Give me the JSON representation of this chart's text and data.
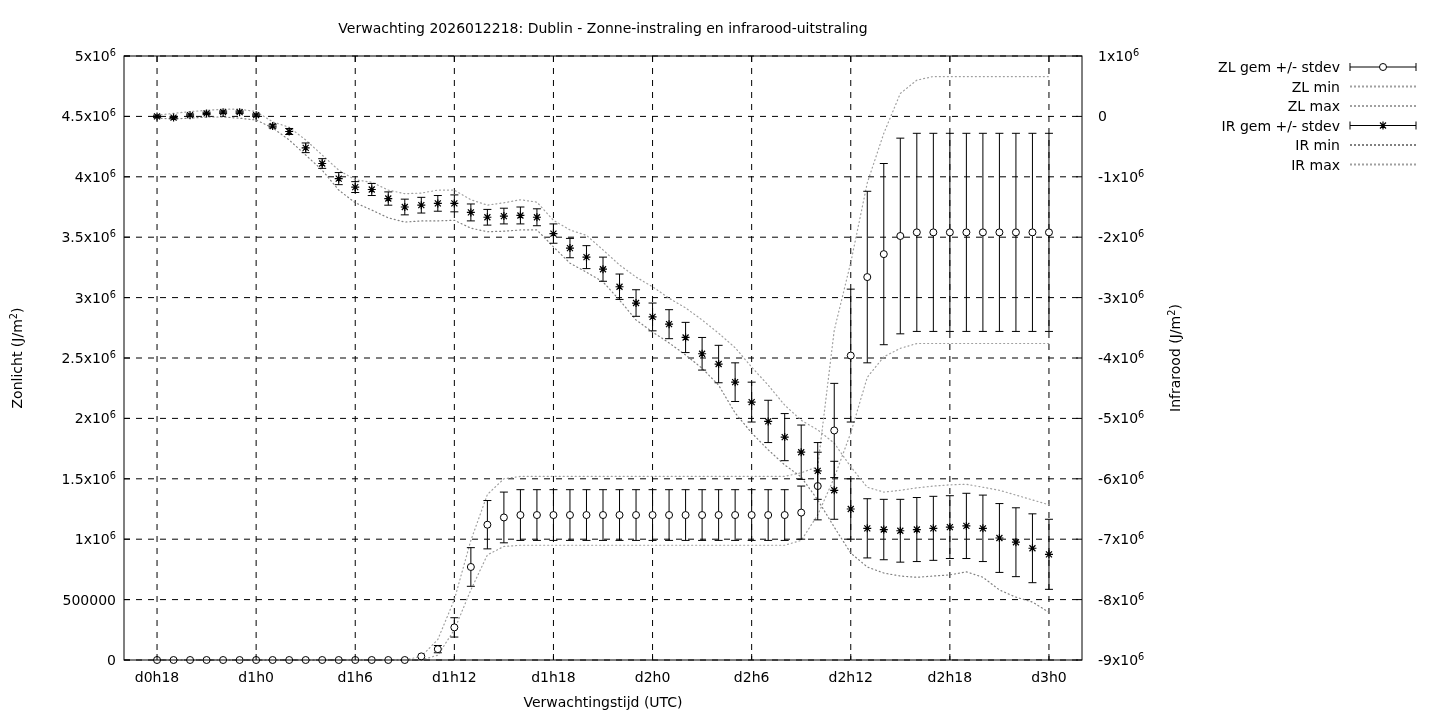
{
  "chart_data": {
    "type": "scatter",
    "title": "Verwachting 2026012218: Dublin - Zonne-instraling en infrarood-uitstraling",
    "xlabel": "Verwachtingstijd (UTC)",
    "ylabel": "Zonlicht (J/m$^{2}$)",
    "y2label": "Infrarood (J/m$^{2}$)",
    "categories": [
      "d0h18",
      null,
      null,
      null,
      null,
      null,
      "d1h0",
      null,
      null,
      null,
      null,
      null,
      "d1h6",
      null,
      null,
      null,
      null,
      null,
      "d1h12",
      null,
      null,
      null,
      null,
      null,
      "d1h18",
      null,
      null,
      null,
      null,
      null,
      "d2h0",
      null,
      null,
      null,
      null,
      null,
      "d2h6",
      null,
      null,
      null,
      null,
      null,
      "d2h12",
      null,
      null,
      null,
      null,
      null,
      "d2h18",
      null,
      null,
      null,
      null,
      null,
      "d3h0"
    ],
    "ylim": [
      0,
      5000000
    ],
    "yticks": [
      0,
      500000,
      {
        "value": 1000000,
        "label": "1x10$^{6}$"
      },
      {
        "value": 1500000,
        "label": "1.5x10$^{6}$"
      },
      {
        "value": 2000000,
        "label": "2x10$^{6}$"
      },
      {
        "value": 2500000,
        "label": "2.5x10$^{6}$"
      },
      {
        "value": 3000000,
        "label": "3x10$^{6}$"
      },
      {
        "value": 3500000,
        "label": "3.5x10$^{6}$"
      },
      {
        "value": 4000000,
        "label": "4x10$^{6}$"
      },
      {
        "value": 4500000,
        "label": "4.5x10$^{6}$"
      },
      {
        "value": 5000000,
        "label": "5x10$^{6}$"
      }
    ],
    "y2lim": [
      -9000000,
      1000000
    ],
    "y2ticks": [
      {
        "value": 1000000,
        "label": "1x10$^{6}$"
      },
      0,
      {
        "value": -1000000,
        "label": "-1x10$^{6}$"
      },
      {
        "value": -2000000,
        "label": "-2x10$^{6}$"
      },
      {
        "value": -3000000,
        "label": "-3x10$^{6}$"
      },
      {
        "value": -4000000,
        "label": "-4x10$^{6}$"
      },
      {
        "value": -5000000,
        "label": "-5x10$^{6}$"
      },
      {
        "value": -6000000,
        "label": "-6x10$^{6}$"
      },
      {
        "value": -7000000,
        "label": "-7x10$^{6}$"
      },
      {
        "value": -8000000,
        "label": "-8x10$^{6}$"
      },
      {
        "value": -9000000,
        "label": "-9x10$^{6}$"
      }
    ],
    "grid": true,
    "legend": "top right",
    "series": [
      {
        "name": "ZL gem +/- stdev",
        "marker": "circle",
        "color": "#000000",
        "values": [
          0,
          0,
          0,
          0,
          0,
          0,
          0,
          0,
          0,
          0,
          0,
          0,
          0,
          0,
          0,
          0,
          30000,
          90000,
          270000,
          770000,
          1120000,
          1180000,
          1200000,
          1200000,
          1200000,
          1200000,
          1200000,
          1200000,
          1200000,
          1200000,
          1200000,
          1200000,
          1200000,
          1200000,
          1200000,
          1200000,
          1200000,
          1200000,
          1200000,
          1220000,
          1440000,
          1900000,
          2520000,
          3170000,
          3360000,
          3510000,
          3540000,
          3540000,
          3540000,
          3540000,
          3540000,
          3540000,
          3540000,
          3540000,
          3540000
        ],
        "errors": [
          null,
          null,
          null,
          null,
          null,
          null,
          null,
          null,
          null,
          null,
          null,
          null,
          null,
          null,
          null,
          null,
          null,
          30000,
          80000,
          160000,
          200000,
          210000,
          210000,
          210000,
          210000,
          210000,
          210000,
          210000,
          210000,
          210000,
          210000,
          210000,
          210000,
          210000,
          210000,
          210000,
          210000,
          210000,
          210000,
          220000,
          280000,
          390000,
          550000,
          710000,
          750000,
          810000,
          820000,
          820000,
          820000,
          820000,
          820000,
          820000,
          820000,
          820000,
          820000
        ]
      },
      {
        "name": "ZL min",
        "type": "line",
        "marker": "none",
        "line_style": "dotted",
        "color": "#a0a0a0",
        "values": [
          0,
          0,
          0,
          0,
          0,
          0,
          0,
          0,
          0,
          0,
          0,
          0,
          0,
          0,
          0,
          0,
          0,
          40000,
          250000,
          580000,
          870000,
          940000,
          950000,
          950000,
          950000,
          950000,
          950000,
          950000,
          950000,
          950000,
          950000,
          950000,
          950000,
          950000,
          950000,
          950000,
          950000,
          950000,
          950000,
          990000,
          1200000,
          1510000,
          1880000,
          2340000,
          2510000,
          2580000,
          2620000,
          2620000,
          2620000,
          2620000,
          2620000,
          2620000,
          2620000,
          2620000,
          2620000
        ]
      },
      {
        "name": "ZL max",
        "type": "line",
        "marker": "none",
        "line_style": "dotted",
        "color": "#a0a0a0",
        "values": [
          0,
          0,
          0,
          0,
          0,
          0,
          0,
          0,
          0,
          0,
          0,
          0,
          0,
          0,
          0,
          0,
          30000,
          170000,
          500000,
          990000,
          1370000,
          1500000,
          1520000,
          1520000,
          1520000,
          1520000,
          1520000,
          1520000,
          1520000,
          1520000,
          1520000,
          1520000,
          1520000,
          1520000,
          1520000,
          1520000,
          1520000,
          1520000,
          1520000,
          1550000,
          1600000,
          2730000,
          3290000,
          3950000,
          4360000,
          4690000,
          4800000,
          4830000,
          4830000,
          4830000,
          4830000,
          4830000,
          4830000,
          4830000,
          4830000
        ]
      },
      {
        "name": "IR gem +/- stdev",
        "marker": "cross",
        "axis": "y2",
        "color": "#000000",
        "values": [
          0,
          -20000,
          20000,
          50000,
          70000,
          70000,
          20000,
          -160000,
          -250000,
          -520000,
          -780000,
          -1030000,
          -1170000,
          -1210000,
          -1360000,
          -1500000,
          -1470000,
          -1440000,
          -1440000,
          -1590000,
          -1670000,
          -1650000,
          -1640000,
          -1670000,
          -1940000,
          -2180000,
          -2330000,
          -2530000,
          -2820000,
          -3090000,
          -3320000,
          -3440000,
          -3660000,
          -3930000,
          -4100000,
          -4400000,
          -4730000,
          -5050000,
          -5310000,
          -5560000,
          -5870000,
          -6190000,
          -6500000,
          -6820000,
          -6840000,
          -6860000,
          -6840000,
          -6820000,
          -6800000,
          -6780000,
          -6820000,
          -6980000,
          -7050000,
          -7150000,
          -7250000
        ],
        "errors": [
          20000,
          20000,
          20000,
          20000,
          20000,
          20000,
          20000,
          30000,
          50000,
          80000,
          80000,
          100000,
          90000,
          100000,
          110000,
          130000,
          130000,
          130000,
          140000,
          140000,
          130000,
          130000,
          140000,
          140000,
          160000,
          160000,
          190000,
          200000,
          210000,
          220000,
          230000,
          240000,
          250000,
          270000,
          310000,
          320000,
          330000,
          350000,
          390000,
          450000,
          470000,
          480000,
          500000,
          490000,
          500000,
          520000,
          530000,
          530000,
          520000,
          540000,
          550000,
          570000,
          570000,
          570000,
          580000
        ]
      },
      {
        "name": "IR min",
        "type": "line",
        "marker": "none",
        "line_style": "dotted",
        "axis": "y2",
        "color": "#808080",
        "values": [
          -30000,
          -40000,
          -30000,
          -10000,
          -10000,
          -30000,
          -60000,
          -190000,
          -390000,
          -640000,
          -890000,
          -1220000,
          -1430000,
          -1550000,
          -1680000,
          -1750000,
          -1730000,
          -1730000,
          -1720000,
          -1850000,
          -1910000,
          -1900000,
          -1880000,
          -1880000,
          -2160000,
          -2430000,
          -2580000,
          -2740000,
          -3040000,
          -3370000,
          -3570000,
          -3750000,
          -3950000,
          -4170000,
          -4450000,
          -4910000,
          -5240000,
          -5520000,
          -5770000,
          -5970000,
          -6350000,
          -6800000,
          -7230000,
          -7460000,
          -7560000,
          -7610000,
          -7630000,
          -7610000,
          -7590000,
          -7540000,
          -7630000,
          -7840000,
          -7960000,
          -8040000,
          -8210000
        ]
      },
      {
        "name": "IR max",
        "type": "line",
        "marker": "none",
        "line_style": "dotted",
        "axis": "y2",
        "color": "#a0a0a0",
        "values": [
          20000,
          50000,
          80000,
          100000,
          120000,
          120000,
          80000,
          -90000,
          -180000,
          -390000,
          -640000,
          -890000,
          -1050000,
          -1090000,
          -1220000,
          -1280000,
          -1270000,
          -1220000,
          -1220000,
          -1380000,
          -1470000,
          -1430000,
          -1380000,
          -1420000,
          -1720000,
          -1880000,
          -1970000,
          -2210000,
          -2460000,
          -2660000,
          -2820000,
          -3010000,
          -3170000,
          -3370000,
          -3590000,
          -3830000,
          -4150000,
          -4450000,
          -4780000,
          -5030000,
          -5190000,
          -5410000,
          -5800000,
          -6140000,
          -6220000,
          -6190000,
          -6150000,
          -6120000,
          -6100000,
          -6090000,
          -6140000,
          -6190000,
          -6270000,
          -6350000,
          -6430000
        ]
      }
    ]
  }
}
